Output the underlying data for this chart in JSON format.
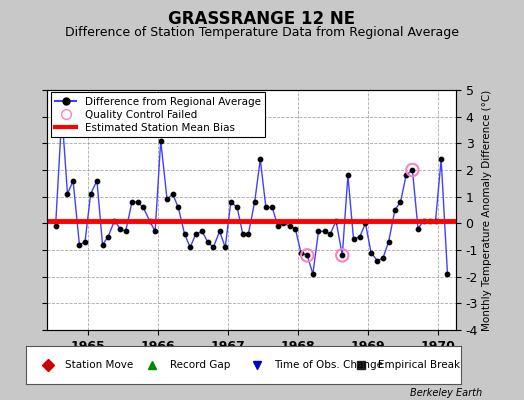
{
  "title": "GRASSRANGE 12 NE",
  "subtitle": "Difference of Station Temperature Data from Regional Average",
  "ylabel_right": "Monthly Temperature Anomaly Difference (°C)",
  "bias_value": 0.1,
  "xlim": [
    1964.42,
    1970.25
  ],
  "ylim": [
    -4,
    5
  ],
  "yticks": [
    -4,
    -3,
    -2,
    -1,
    0,
    1,
    2,
    3,
    4,
    5
  ],
  "xticks": [
    1965,
    1966,
    1967,
    1968,
    1969,
    1970
  ],
  "background_color": "#c8c8c8",
  "plot_bg_color": "#ffffff",
  "grid_color": "#a0a0a0",
  "line_color": "#4040ff",
  "marker_color": "#000000",
  "bias_color": "#ff0000",
  "qc_fail_color": "#ff80c0",
  "title_fontsize": 12,
  "subtitle_fontsize": 9,
  "tick_fontsize": 9,
  "data_x": [
    1964.54,
    1964.63,
    1964.71,
    1964.79,
    1964.88,
    1964.96,
    1965.04,
    1965.13,
    1965.21,
    1965.29,
    1965.38,
    1965.46,
    1965.54,
    1965.63,
    1965.71,
    1965.79,
    1965.88,
    1965.96,
    1966.04,
    1966.13,
    1966.21,
    1966.29,
    1966.38,
    1966.46,
    1966.54,
    1966.63,
    1966.71,
    1966.79,
    1966.88,
    1966.96,
    1967.04,
    1967.13,
    1967.21,
    1967.29,
    1967.38,
    1967.46,
    1967.54,
    1967.63,
    1967.71,
    1967.79,
    1967.88,
    1967.96,
    1968.04,
    1968.13,
    1968.21,
    1968.29,
    1968.38,
    1968.46,
    1968.54,
    1968.63,
    1968.71,
    1968.79,
    1968.88,
    1968.96,
    1969.04,
    1969.13,
    1969.21,
    1969.29,
    1969.38,
    1969.46,
    1969.54,
    1969.63,
    1969.71,
    1969.79,
    1969.88,
    1969.96,
    1970.04,
    1970.13
  ],
  "data_y": [
    -0.1,
    4.1,
    1.1,
    1.6,
    -0.8,
    -0.7,
    1.1,
    1.6,
    -0.8,
    -0.5,
    0.1,
    -0.2,
    -0.3,
    0.8,
    0.8,
    0.6,
    0.1,
    -0.3,
    3.1,
    0.9,
    1.1,
    0.6,
    -0.4,
    -0.9,
    -0.4,
    -0.3,
    -0.7,
    -0.9,
    -0.3,
    -0.9,
    0.8,
    0.6,
    -0.4,
    -0.4,
    0.8,
    2.4,
    0.6,
    0.6,
    -0.1,
    0.0,
    -0.1,
    -0.2,
    -1.1,
    -1.2,
    -1.9,
    -0.3,
    -0.3,
    -0.4,
    0.1,
    -1.2,
    1.8,
    -0.6,
    -0.5,
    0.0,
    -1.1,
    -1.4,
    -1.3,
    -0.7,
    0.5,
    0.8,
    1.8,
    2.0,
    -0.2,
    0.1,
    0.1,
    0.1,
    2.4,
    -1.9
  ],
  "qc_fail_indices": [
    43,
    49,
    61
  ],
  "legend_bottom": [
    {
      "label": "Station Move",
      "color": "#cc0000",
      "marker": "D"
    },
    {
      "label": "Record Gap",
      "color": "#008800",
      "marker": "^"
    },
    {
      "label": "Time of Obs. Change",
      "color": "#0000cc",
      "marker": "v"
    },
    {
      "label": "Empirical Break",
      "color": "#222222",
      "marker": "s"
    }
  ]
}
